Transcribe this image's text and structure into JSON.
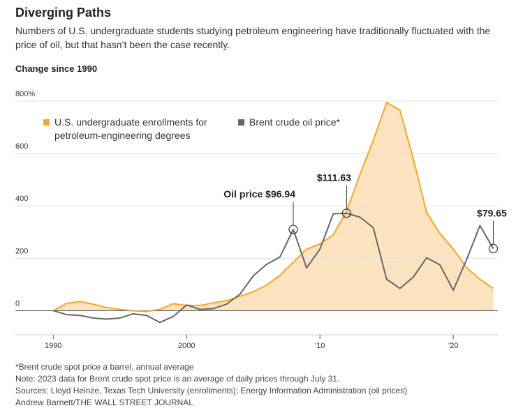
{
  "chart_data": {
    "type": "line",
    "title": "Diverging Paths",
    "subtitle": "Numbers of U.S. undergraduate students studying petroleum engineering have traditionally fluctuated with the price of oil, but that hasn’t been the case recently.",
    "y_label": "Change since 1990",
    "x": [
      1990,
      1991,
      1992,
      1993,
      1994,
      1995,
      1996,
      1997,
      1998,
      1999,
      2000,
      2001,
      2002,
      2003,
      2004,
      2005,
      2006,
      2007,
      2008,
      2009,
      2010,
      2011,
      2012,
      2013,
      2014,
      2015,
      2016,
      2017,
      2018,
      2019,
      2020,
      2021,
      2022,
      2023
    ],
    "series": [
      {
        "name": "U.S. undergraduate enrollments for petroleum-engineering degrees",
        "color": "#f5a623",
        "fill": "#fde3c0",
        "values": [
          0,
          28,
          35,
          25,
          12,
          5,
          0,
          -3,
          5,
          27,
          20,
          20,
          30,
          38,
          55,
          72,
          98,
          135,
          185,
          235,
          255,
          290,
          380,
          520,
          650,
          795,
          765,
          580,
          375,
          295,
          235,
          165,
          120,
          85
        ]
      },
      {
        "name": "Brent crude oil price*",
        "color": "#666666",
        "values": [
          0,
          -15,
          -18,
          -28,
          -32,
          -28,
          -12,
          -18,
          -45,
          -22,
          22,
          5,
          8,
          25,
          63,
          133,
          177,
          205,
          310,
          163,
          235,
          370,
          372,
          357,
          317,
          120,
          85,
          128,
          202,
          175,
          78,
          195,
          325,
          237
        ]
      }
    ],
    "annotations": [
      {
        "label": "Oil price $96.94",
        "x": 2008
      },
      {
        "label": "$111.63",
        "x": 2012
      },
      {
        "label": "$79.65",
        "x": 2023
      }
    ],
    "xlim": [
      1987,
      2023.5
    ],
    "ylim": [
      -100,
      800
    ],
    "xticks": [
      1990,
      2000,
      {
        "value": 2010,
        "label": "’10"
      },
      {
        "value": 2020,
        "label": "’20"
      }
    ],
    "yticks": [
      0,
      200,
      400,
      600,
      {
        "value": 800,
        "label": "800%"
      }
    ],
    "grid": true,
    "notes": [
      "*Brent crude spot price a barrel, annual average",
      "Note: 2023 data for Brent crude spot price is an average of daily prices through July 31.",
      "Sources: Lloyd Heinze, Texas Tech University (enrollments); Energy Information Administration (oil prices)",
      "Andrew Barnett/THE WALL STREET JOURNAL"
    ]
  }
}
